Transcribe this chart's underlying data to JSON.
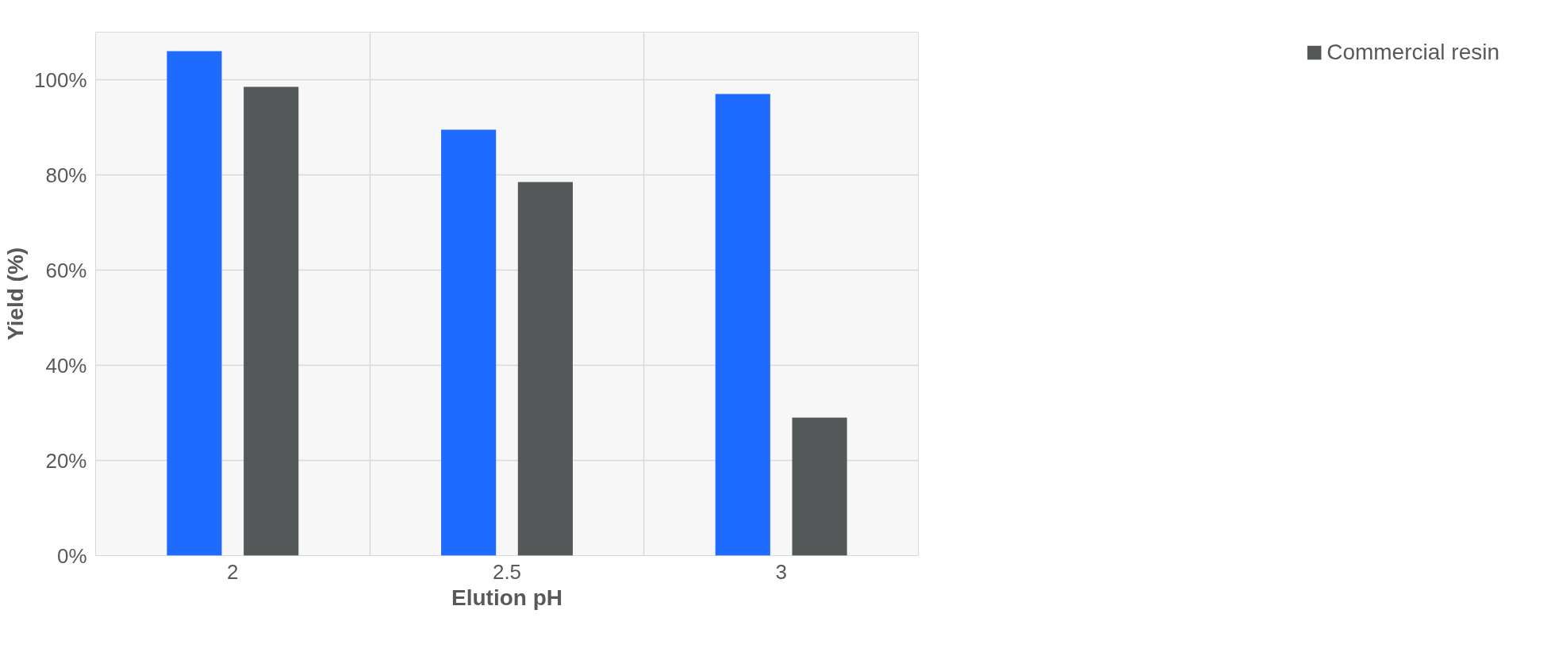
{
  "chart_data": {
    "type": "bar",
    "xlabel": "Elution pH",
    "ylabel": "Yield (%)",
    "categories": [
      "2",
      "2.5",
      "3"
    ],
    "series": [
      {
        "color": "#1f6bff",
        "values": [
          106,
          89.5,
          97
        ]
      },
      {
        "name": "Commercial resin",
        "color": "#555859",
        "values": [
          98.5,
          78.5,
          29
        ]
      }
    ],
    "ylim": [
      0,
      110
    ],
    "yticks": [
      {
        "value": 0,
        "label": "0%"
      },
      {
        "value": 20,
        "label": "20%"
      },
      {
        "value": 40,
        "label": "40%"
      },
      {
        "value": 60,
        "label": "60%"
      },
      {
        "value": 80,
        "label": "80%"
      },
      {
        "value": 100,
        "label": "100%"
      }
    ],
    "grid": true,
    "legend": "right"
  }
}
